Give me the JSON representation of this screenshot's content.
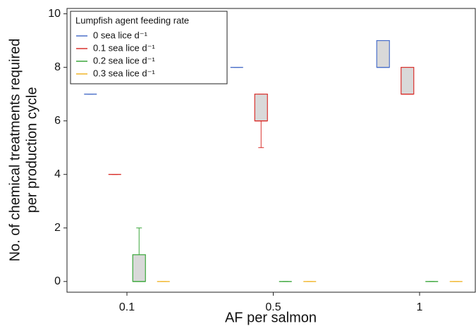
{
  "chart_data": {
    "type": "box",
    "xlabel": "AF per salmon",
    "ylabel": [
      "No. of chemical treatments required",
      "per production cycle"
    ],
    "categories": [
      "0.1",
      "0.5",
      "1"
    ],
    "ylim": [
      -0.4,
      10.2
    ],
    "yticks": [
      0,
      2,
      4,
      6,
      8,
      10
    ],
    "legend_title": "Lumpfish agent feeding rate",
    "legend_position": "upper left",
    "box_fill": "#d9d9d9",
    "series": [
      {
        "name": "0 sea lice d⁻¹",
        "color": "#4a6fc9",
        "min": [
          7,
          8,
          8
        ],
        "q1": [
          7,
          8,
          8
        ],
        "median": [
          7,
          8,
          8
        ],
        "q3": [
          7,
          8,
          9
        ],
        "max": [
          7,
          8,
          9
        ]
      },
      {
        "name": "0.1 sea lice d⁻¹",
        "color": "#d9302c",
        "min": [
          4,
          5,
          7
        ],
        "q1": [
          4,
          6,
          7
        ],
        "median": [
          4,
          6,
          7
        ],
        "q3": [
          4,
          7,
          8
        ],
        "max": [
          4,
          7,
          8
        ]
      },
      {
        "name": "0.2 sea lice d⁻¹",
        "color": "#3aa63a",
        "min": [
          0,
          0,
          0
        ],
        "q1": [
          0,
          0,
          0
        ],
        "median": [
          0,
          0,
          0
        ],
        "q3": [
          1,
          0,
          0
        ],
        "max": [
          2,
          0,
          0
        ]
      },
      {
        "name": "0.3 sea lice d⁻¹",
        "color": "#f0b429",
        "min": [
          0,
          0,
          0
        ],
        "q1": [
          0,
          0,
          0
        ],
        "median": [
          0,
          0,
          0
        ],
        "q3": [
          0,
          0,
          0
        ],
        "max": [
          0,
          0,
          0
        ]
      }
    ]
  }
}
